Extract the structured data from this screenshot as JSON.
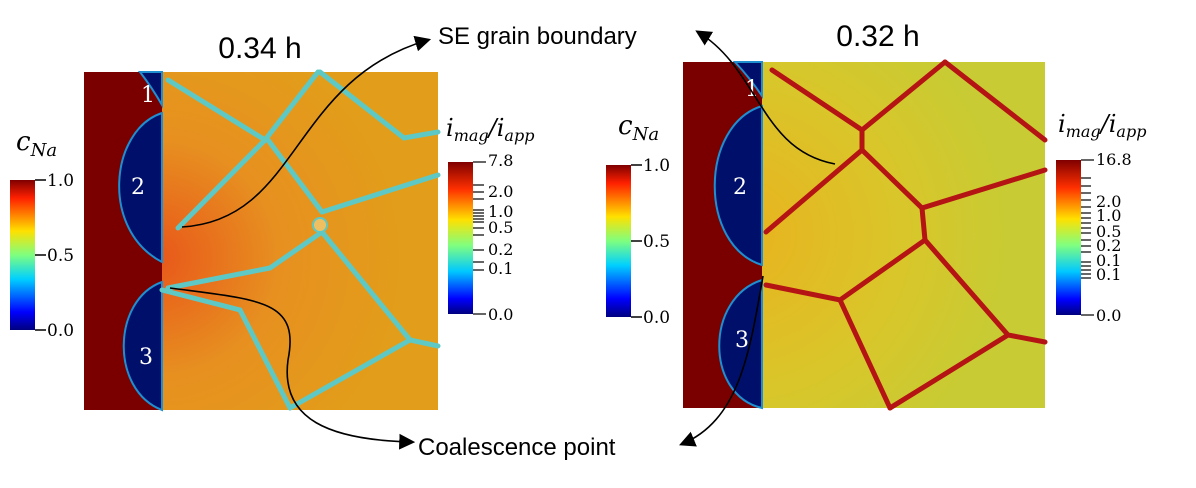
{
  "title_left": "0.34 h",
  "title_right": "0.32 h",
  "annotations": {
    "grain_boundary": "SE grain boundary",
    "coalescence": "Coalescence point"
  },
  "anode_labels": [
    "1",
    "2",
    "3"
  ],
  "colorbar_c": {
    "label_main": "c",
    "label_sub": "Na",
    "ticks": [
      "1.0",
      "0.5",
      "0.0"
    ]
  },
  "colorbar_i_left": {
    "label_main": "i",
    "label_sub1": "mag",
    "label_slash": "/i",
    "label_sub2": "app",
    "ticks": [
      "7.8",
      "2.0",
      "1.0",
      "0.5",
      "0.2",
      "0.1",
      "0.0"
    ]
  },
  "colorbar_i_right": {
    "label_main": "i",
    "label_sub1": "mag",
    "label_slash": "/i",
    "label_sub2": "app",
    "ticks": [
      "16.8",
      "2.0",
      "1.0",
      "0.5",
      "0.2",
      "0.1",
      "0.1",
      "0.0"
    ]
  },
  "colors": {
    "metal": "#7a0000",
    "anode_blue": "#00106a",
    "field_left": "#e49a1a",
    "field_right": "#d6c62c",
    "boundary_left": "#5ec9c4",
    "boundary_right": "#b51414"
  }
}
